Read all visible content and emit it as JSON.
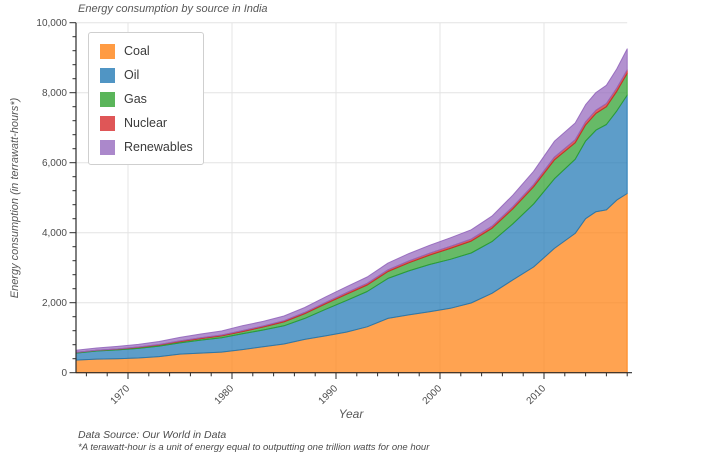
{
  "title": "Energy consumption by source in India",
  "axes": {
    "x_label": "Year",
    "y_label": "Energy consumption (in terrawatt-hours*)",
    "x_ticks": [
      1970,
      1980,
      1990,
      2000,
      2010
    ],
    "x_tick_labels": [
      "1970",
      "1980",
      "1990",
      "2000",
      "2010"
    ],
    "x_minor_tick_step": 2,
    "y_ticks": [
      0,
      2000,
      4000,
      6000,
      8000,
      10000
    ],
    "y_tick_labels": [
      "0",
      "2,000",
      "4,000",
      "6,000",
      "8,000",
      "10,000"
    ],
    "y_minor_tick_step": 400
  },
  "footer": {
    "source": "Data Source: Our World in Data",
    "footnote": "*A terawatt-hour is a unit of energy equal to outputting one trillion watts for one hour"
  },
  "chart_data": {
    "type": "area",
    "stacked": true,
    "title": "Energy consumption by source in India",
    "xlabel": "Year",
    "ylabel": "Energy consumption (in terrawatt-hours*)",
    "xlim": [
      1965,
      2018
    ],
    "ylim": [
      0,
      10000
    ],
    "grid": true,
    "legend_position": "upper-left",
    "x": [
      1965,
      1967,
      1969,
      1971,
      1973,
      1975,
      1977,
      1979,
      1981,
      1983,
      1985,
      1987,
      1989,
      1991,
      1993,
      1995,
      1997,
      1999,
      2001,
      2003,
      2005,
      2007,
      2009,
      2011,
      2013,
      2014,
      2015,
      2016,
      2017,
      2018
    ],
    "series": [
      {
        "name": "Coal",
        "color": "#ff7f0e",
        "values": [
          360,
          390,
          400,
          420,
          460,
          530,
          560,
          590,
          660,
          740,
          820,
          950,
          1050,
          1160,
          1310,
          1550,
          1650,
          1740,
          1840,
          1990,
          2270,
          2650,
          3020,
          3550,
          3980,
          4400,
          4600,
          4650,
          4930,
          5120
        ]
      },
      {
        "name": "Oil",
        "color": "#1f77b4",
        "values": [
          200,
          230,
          250,
          275,
          300,
          320,
          370,
          410,
          450,
          480,
          520,
          600,
          760,
          900,
          1010,
          1145,
          1260,
          1350,
          1400,
          1430,
          1475,
          1600,
          1800,
          1990,
          2120,
          2220,
          2330,
          2440,
          2550,
          2810
        ]
      },
      {
        "name": "Gas",
        "color": "#2ca02c",
        "values": [
          20,
          22,
          25,
          28,
          32,
          38,
          45,
          52,
          65,
          85,
          110,
          135,
          160,
          180,
          185,
          195,
          230,
          270,
          310,
          340,
          380,
          430,
          490,
          540,
          470,
          460,
          480,
          510,
          560,
          620
        ]
      },
      {
        "name": "Nuclear",
        "color": "#d62728",
        "values": [
          0,
          0,
          5,
          10,
          15,
          20,
          22,
          25,
          28,
          30,
          35,
          38,
          40,
          45,
          48,
          50,
          52,
          55,
          58,
          58,
          60,
          62,
          65,
          80,
          85,
          88,
          90,
          92,
          95,
          100
        ]
      },
      {
        "name": "Renewables",
        "color": "#9467bd",
        "values": [
          60,
          65,
          70,
          75,
          85,
          100,
          110,
          115,
          140,
          130,
          135,
          140,
          155,
          170,
          180,
          190,
          210,
          225,
          245,
          265,
          290,
          330,
          380,
          450,
          480,
          490,
          505,
          520,
          545,
          600
        ]
      }
    ],
    "style": {
      "fill_opacity": 0.72,
      "edge_opacity": 0.9,
      "gridline_color": "#e4e4e4",
      "spine_color": "#2b2b2b",
      "tick_label_color": "#4c4c4c"
    }
  }
}
